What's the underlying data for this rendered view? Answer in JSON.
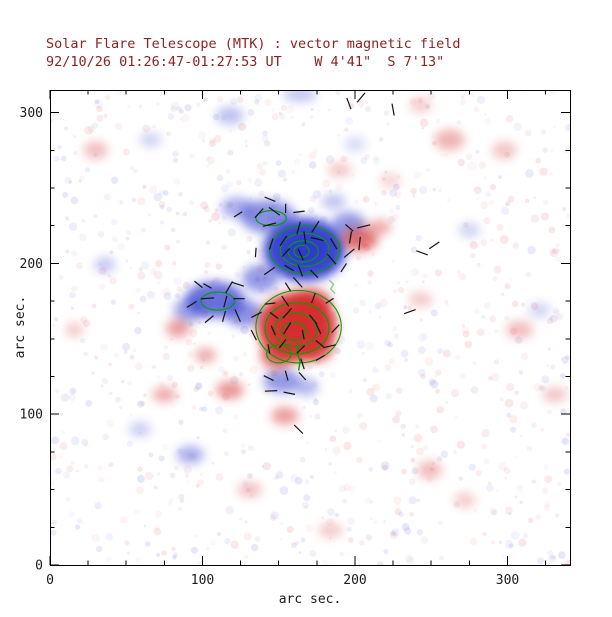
{
  "title": "Solar Flare Telescope (MTK) : vector magnetic field",
  "subtitle": "92/10/26 01:26:47-01:27:53 UT    W 4'41\"  S 7'13\"",
  "axes": {
    "xlabel": "arc sec.",
    "ylabel": "arc sec.",
    "xticks": [
      0,
      100,
      200,
      300
    ],
    "yticks": [
      0,
      100,
      200,
      300
    ],
    "xlim": [
      0,
      341
    ],
    "ylim": [
      0,
      315
    ],
    "minor_tick_step": 25
  },
  "colors": {
    "heading": "#8b2323",
    "axis_text": "#1c1c1c",
    "frame": "#000000"
  },
  "chart_data": {
    "type": "heatmap",
    "title": "Solar Flare Telescope (MTK) : vector magnetic field",
    "subtitle": "92/10/26 01:26:47-01:27:53 UT    W 4'41\"  S 7'13\"",
    "xlabel": "arc sec.",
    "ylabel": "arc sec.",
    "xlim": [
      0,
      341
    ],
    "ylim": [
      0,
      315
    ],
    "xticks": [
      0,
      100,
      200,
      300
    ],
    "yticks": [
      0,
      100,
      200,
      300
    ],
    "legend": "red = positive polarity, blue = negative polarity, green = contours of field strength, black segments = transverse field vectors",
    "polarity_colors": {
      "positive": "#d42a2a",
      "negative": "#2a35cc"
    },
    "contour_color": "#00a000",
    "light_green": "#7fd87f",
    "vector_color": "#141414",
    "positive_blobs": [
      [
        162,
        158,
        26,
        23,
        0.92
      ],
      [
        163,
        159,
        15,
        12,
        0.8
      ],
      [
        172,
        174,
        12,
        9,
        0.7
      ],
      [
        149,
        139,
        11,
        9,
        0.65
      ],
      [
        176,
        143,
        10,
        8,
        0.55
      ],
      [
        203,
        216,
        12,
        8,
        0.65
      ],
      [
        216,
        224,
        8,
        5,
        0.4
      ],
      [
        84,
        157,
        8,
        6,
        0.45
      ],
      [
        102,
        139,
        7,
        5,
        0.4
      ],
      [
        118,
        116,
        9,
        6,
        0.5
      ],
      [
        75,
        113,
        8,
        5,
        0.4
      ],
      [
        154,
        99,
        9,
        6,
        0.45
      ],
      [
        131,
        50,
        8,
        5,
        0.3
      ],
      [
        184,
        23,
        8,
        5,
        0.25
      ],
      [
        249,
        63,
        8,
        6,
        0.32
      ],
      [
        272,
        43,
        7,
        5,
        0.25
      ],
      [
        243,
        176,
        8,
        5,
        0.25
      ],
      [
        308,
        156,
        9,
        6,
        0.3
      ],
      [
        331,
        113,
        8,
        5,
        0.28
      ],
      [
        262,
        282,
        10,
        7,
        0.35
      ],
      [
        298,
        275,
        8,
        6,
        0.28
      ],
      [
        190,
        262,
        8,
        5,
        0.25
      ],
      [
        30,
        275,
        8,
        6,
        0.3
      ],
      [
        16,
        156,
        6,
        5,
        0.25
      ],
      [
        223,
        255,
        7,
        5,
        0.2
      ],
      [
        243,
        305,
        7,
        5,
        0.25
      ]
    ],
    "negative_blobs": [
      [
        167,
        209,
        27,
        21,
        0.9
      ],
      [
        167,
        209,
        15,
        11,
        0.75
      ],
      [
        143,
        231,
        18,
        11,
        0.55
      ],
      [
        123,
        237,
        11,
        7,
        0.4
      ],
      [
        196,
        226,
        11,
        8,
        0.5
      ],
      [
        186,
        241,
        8,
        5,
        0.3
      ],
      [
        108,
        176,
        19,
        12,
        0.7
      ],
      [
        91,
        169,
        10,
        8,
        0.45
      ],
      [
        127,
        167,
        12,
        9,
        0.55
      ],
      [
        138,
        190,
        12,
        9,
        0.5
      ],
      [
        152,
        122,
        12,
        8,
        0.5
      ],
      [
        168,
        118,
        8,
        6,
        0.35
      ],
      [
        92,
        73,
        9,
        6,
        0.4
      ],
      [
        59,
        90,
        7,
        5,
        0.25
      ],
      [
        36,
        199,
        7,
        5,
        0.28
      ],
      [
        66,
        282,
        7,
        5,
        0.22
      ],
      [
        118,
        298,
        9,
        6,
        0.3
      ],
      [
        164,
        312,
        11,
        5,
        0.28
      ],
      [
        275,
        222,
        7,
        5,
        0.22
      ],
      [
        321,
        169,
        7,
        5,
        0.22
      ],
      [
        200,
        279,
        7,
        5,
        0.18
      ]
    ],
    "contours": [
      [
        167,
        209,
        23,
        16
      ],
      [
        167,
        209,
        16,
        11
      ],
      [
        166,
        208,
        10,
        7
      ],
      [
        165,
        208,
        5,
        4
      ],
      [
        163,
        158,
        28,
        24
      ],
      [
        162,
        157,
        21,
        17
      ],
      [
        161,
        156,
        14,
        11
      ],
      [
        160,
        155,
        8,
        6
      ],
      [
        110,
        175,
        11,
        6
      ],
      [
        150,
        140,
        8,
        6
      ],
      [
        145,
        230,
        10,
        5
      ]
    ],
    "green_marks": [
      [
        [
          183,
          189
        ],
        [
          186,
          186
        ],
        [
          184,
          183
        ],
        [
          187,
          180
        ]
      ],
      [
        [
          163,
          147
        ],
        [
          162,
          141
        ],
        [
          164,
          135
        ],
        [
          163,
          129
        ]
      ]
    ],
    "vectors": {
      "spacing": 10,
      "jitter": 2.5,
      "min_len": 6,
      "max_len": 9,
      "drop": 0.15,
      "seed": 11,
      "cores": [
        [
          167,
          209,
          33,
          26
        ],
        [
          143,
          231,
          20,
          12
        ],
        [
          108,
          176,
          23,
          14
        ],
        [
          128,
          167,
          14,
          10
        ],
        [
          162,
          158,
          31,
          27
        ],
        [
          152,
          122,
          15,
          10
        ],
        [
          203,
          216,
          14,
          9
        ],
        [
          172,
          174,
          14,
          10
        ]
      ],
      "extra": [
        [
          196,
          306,
          70
        ],
        [
          204,
          310,
          -50
        ],
        [
          225,
          302,
          80
        ],
        [
          244,
          207,
          20
        ],
        [
          252,
          212,
          -35
        ],
        [
          163,
          90,
          45
        ],
        [
          236,
          168,
          -20
        ]
      ]
    },
    "noise": {
      "seed": 42,
      "count": 850,
      "red_fraction": 0.55
    }
  }
}
